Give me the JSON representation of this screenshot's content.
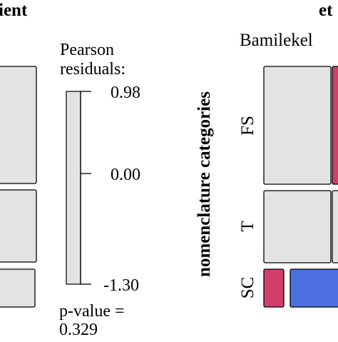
{
  "colors": {
    "tile_neutral": "#e3e3e3",
    "tile_positive": "#cf3f6a",
    "tile_negative": "#4c70e2",
    "stroke": "#000000"
  },
  "left_panel": {
    "title_fragment": "ient"
  },
  "legend": {
    "title_line1": "Pearson",
    "title_line2": "residuals:",
    "tick_top": "0.98",
    "tick_mid": "0.00",
    "tick_bottom": "-1.30",
    "pvalue_line1": "p-value =",
    "pvalue_line2": "0.329"
  },
  "right_panel": {
    "title_fragment": "et",
    "column_label": "Bamilekel",
    "y_axis_label": "nomenclature categories",
    "row_labels": [
      "FS",
      "T",
      "SC"
    ]
  },
  "chart_data": {
    "type": "mosaic",
    "legend_title": "Pearson residuals:",
    "residual_range": [
      -1.3,
      0.98
    ],
    "legend_ticks": [
      0.98,
      0.0,
      -1.3
    ],
    "p_value": 0.329,
    "y_label": "nomenclature categories",
    "rows": [
      "FS",
      "T",
      "SC"
    ],
    "visible_columns": [
      "Bamilekel"
    ],
    "tiles": [
      {
        "row": "FS",
        "column": "Bamilekel",
        "residual_sign": "neutral"
      },
      {
        "row": "T",
        "column": "Bamilekel",
        "residual_sign": "neutral"
      },
      {
        "row": "SC",
        "column": "Bamilekel",
        "residual_sign": "positive"
      },
      {
        "row": "SC",
        "column": "Bamilekel",
        "residual_sign": "negative"
      }
    ]
  }
}
